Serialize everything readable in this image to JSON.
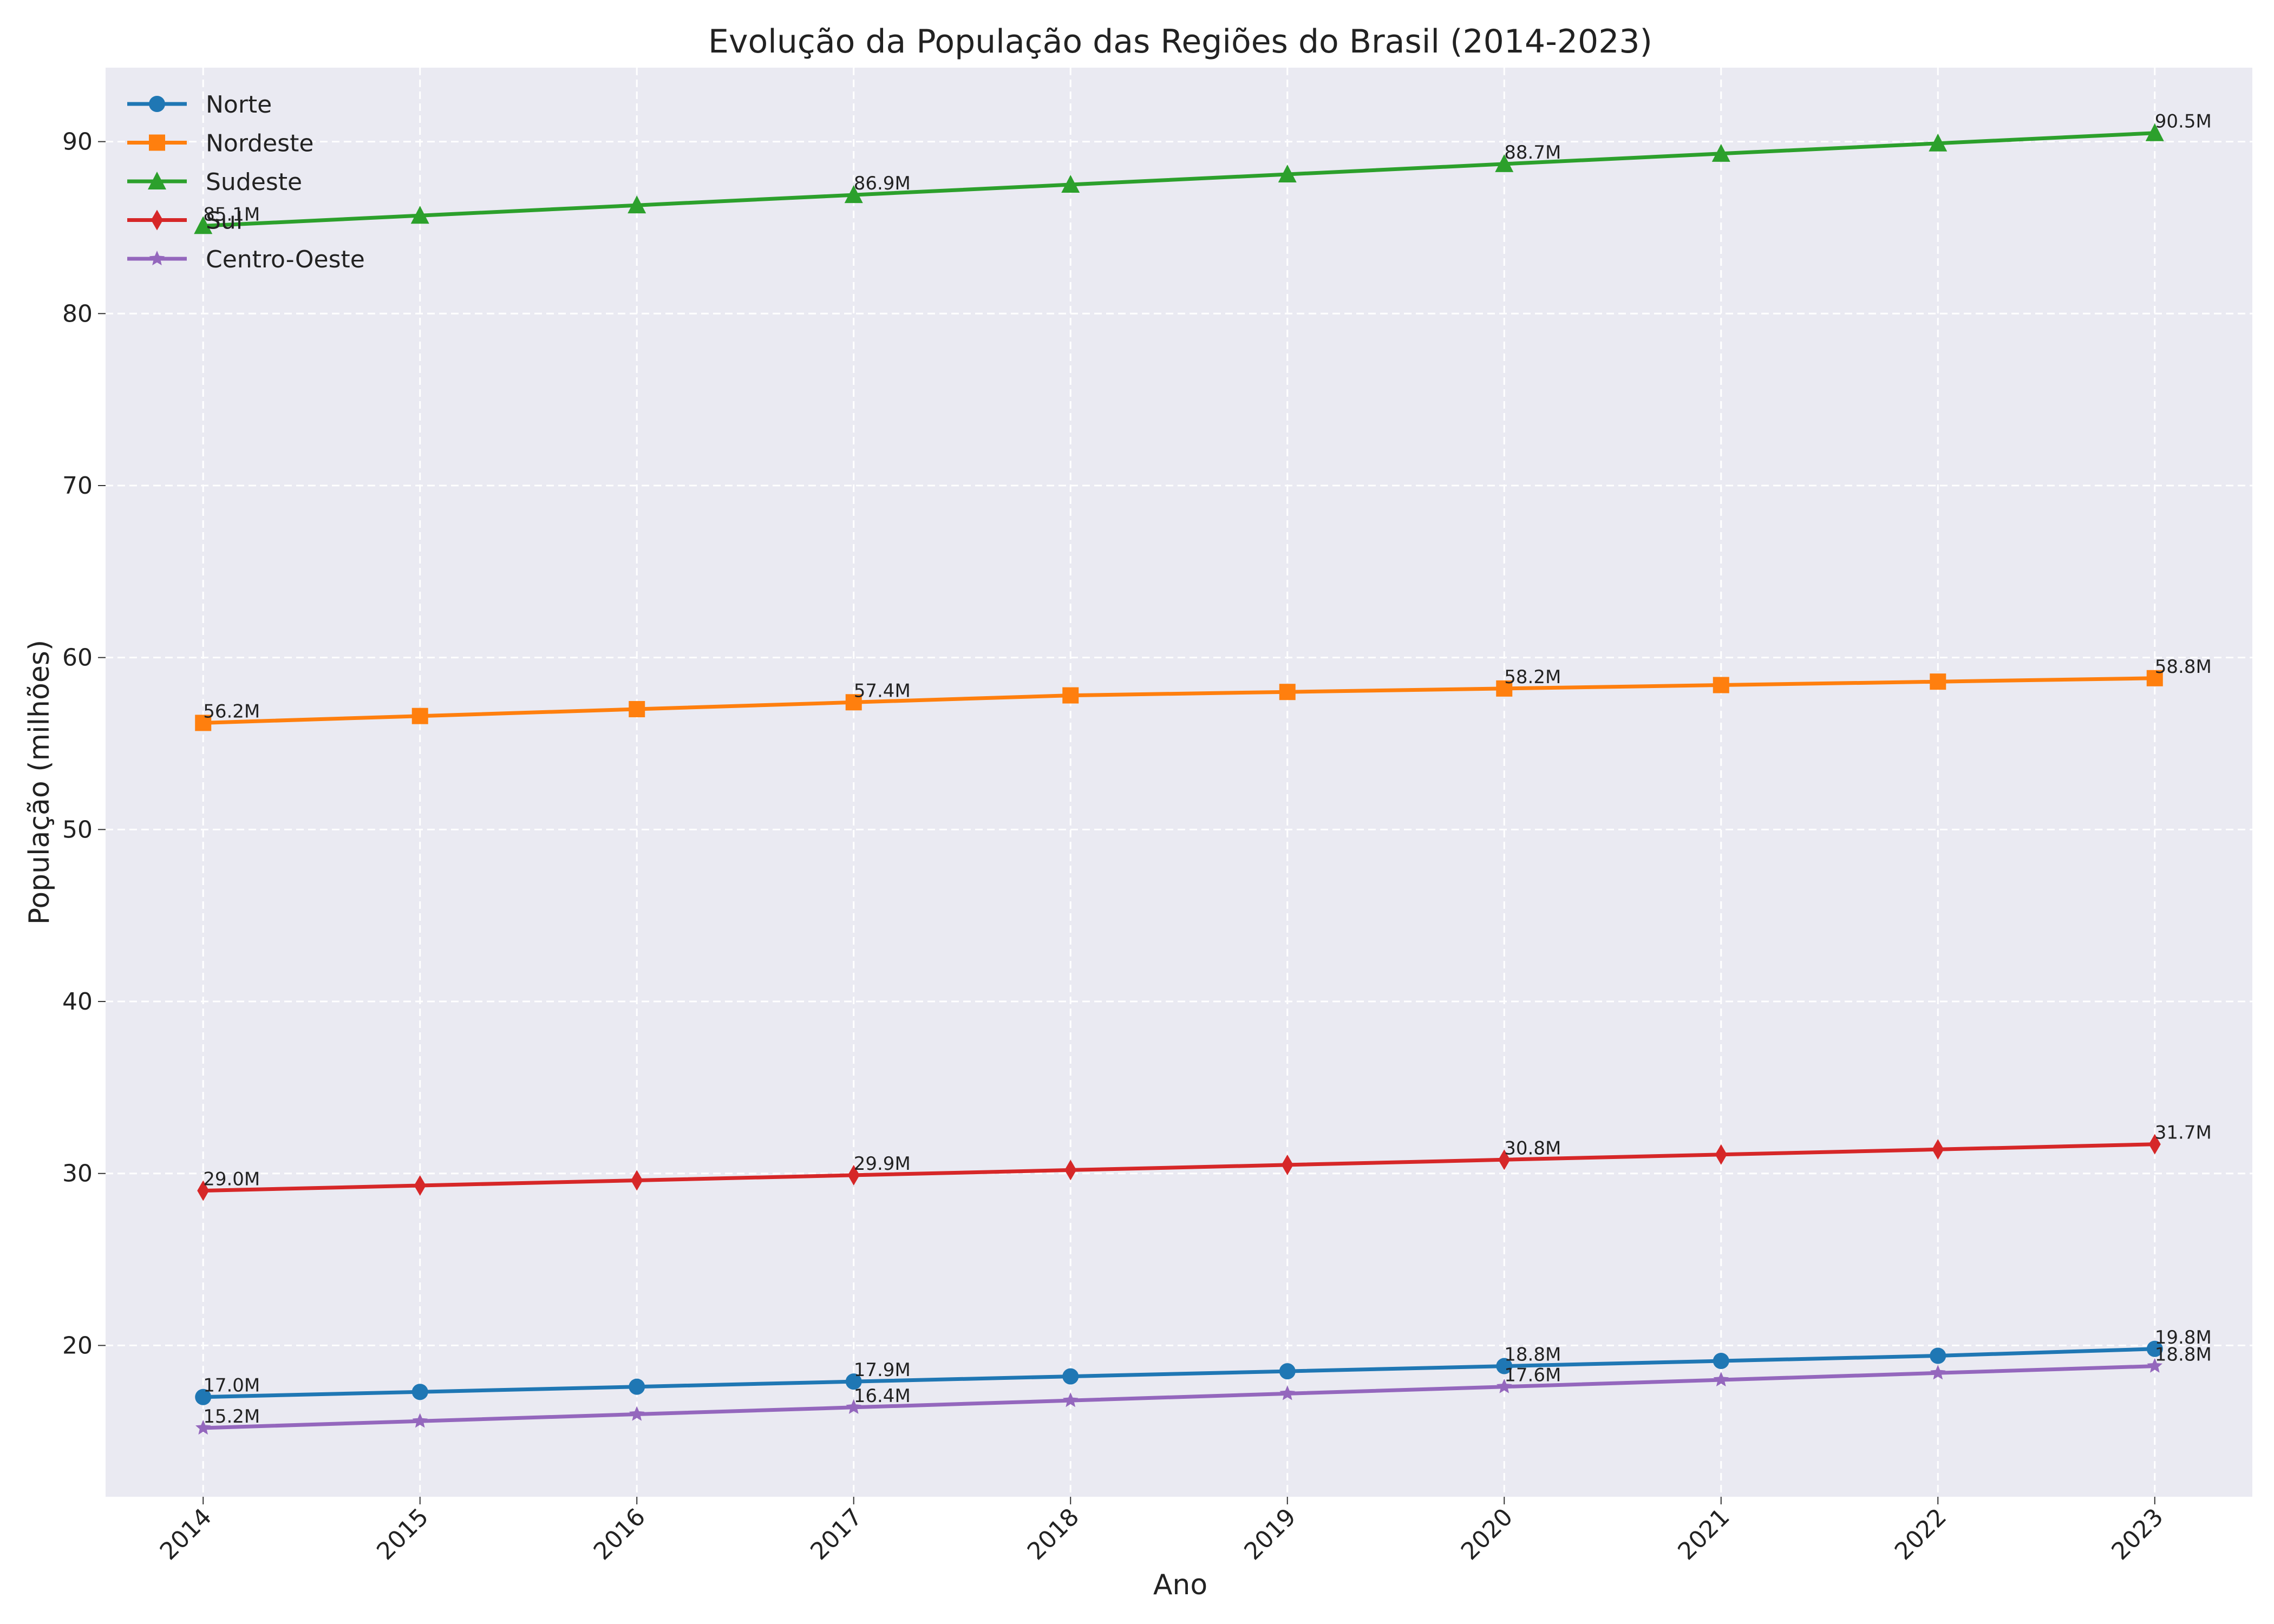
{
  "chart_data": {
    "type": "line",
    "title": "Evolução da População das Regiões do Brasil (2014-2023)",
    "xlabel": "Ano",
    "ylabel": "População (milhões)",
    "x": [
      "2014",
      "2015",
      "2016",
      "2017",
      "2018",
      "2019",
      "2020",
      "2021",
      "2022",
      "2023"
    ],
    "xlim": [
      2013.55,
      2023.45
    ],
    "ylim": [
      11.2,
      94.3
    ],
    "yticks": [
      20,
      30,
      40,
      50,
      60,
      70,
      80,
      90
    ],
    "grid": true,
    "legend_position": "top-left",
    "series": [
      {
        "name": "Norte",
        "color": "#1f77b4",
        "marker": "circle",
        "values": [
          17.0,
          17.3,
          17.6,
          17.9,
          18.2,
          18.5,
          18.8,
          19.1,
          19.4,
          19.8
        ],
        "labels": {
          "0": "17.0M",
          "3": "17.9M",
          "6": "18.8M",
          "9": "19.8M"
        }
      },
      {
        "name": "Nordeste",
        "color": "#ff7f0e",
        "marker": "square",
        "values": [
          56.2,
          56.6,
          57.0,
          57.4,
          57.8,
          58.0,
          58.2,
          58.4,
          58.6,
          58.8
        ],
        "labels": {
          "0": "56.2M",
          "3": "57.4M",
          "6": "58.2M",
          "9": "58.8M"
        }
      },
      {
        "name": "Sudeste",
        "color": "#2ca02c",
        "marker": "triangle",
        "values": [
          85.1,
          85.7,
          86.3,
          86.9,
          87.5,
          88.1,
          88.7,
          89.3,
          89.9,
          90.5
        ],
        "labels": {
          "0": "85.1M",
          "3": "86.9M",
          "6": "88.7M",
          "9": "90.5M"
        }
      },
      {
        "name": "Sul",
        "color": "#d62728",
        "marker": "diamond",
        "values": [
          29.0,
          29.3,
          29.6,
          29.9,
          30.2,
          30.5,
          30.8,
          31.1,
          31.4,
          31.7
        ],
        "labels": {
          "0": "29.0M",
          "3": "29.9M",
          "6": "30.8M",
          "9": "31.7M"
        }
      },
      {
        "name": "Centro-Oeste",
        "color": "#9467bd",
        "marker": "star",
        "values": [
          15.2,
          15.6,
          16.0,
          16.4,
          16.8,
          17.2,
          17.6,
          18.0,
          18.4,
          18.8
        ],
        "labels": {
          "0": "15.2M",
          "3": "16.4M",
          "6": "17.6M",
          "9": "18.8M"
        }
      }
    ]
  }
}
